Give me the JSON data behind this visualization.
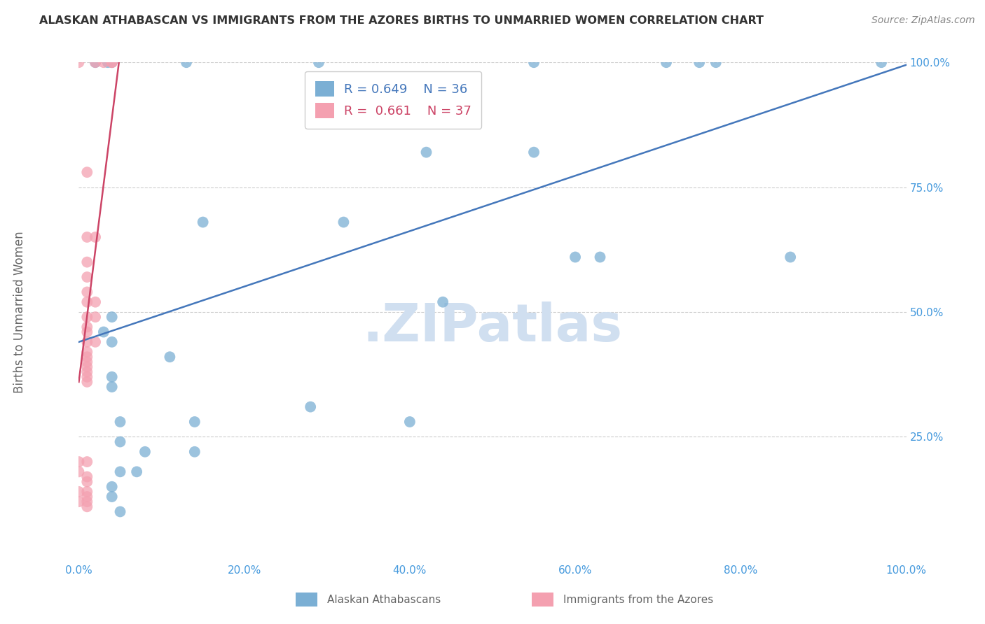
{
  "title": "ALASKAN ATHABASCAN VS IMMIGRANTS FROM THE AZORES BIRTHS TO UNMARRIED WOMEN CORRELATION CHART",
  "source": "Source: ZipAtlas.com",
  "ylabel": "Births to Unmarried Women",
  "xlabel_ticks": [
    "0.0%",
    "20.0%",
    "40.0%",
    "60.0%",
    "80.0%",
    "100.0%"
  ],
  "ylim": [
    0,
    1.0
  ],
  "xlim": [
    0,
    1.0
  ],
  "legend_blue_r": "0.649",
  "legend_blue_n": "36",
  "legend_pink_r": "0.661",
  "legend_pink_n": "37",
  "legend_label_blue": "Alaskan Athabascans",
  "legend_label_pink": "Immigrants from the Azores",
  "watermark": ".ZIPatlas",
  "blue_scatter": [
    [
      0.02,
      1.0
    ],
    [
      0.035,
      1.0
    ],
    [
      0.04,
      1.0
    ],
    [
      0.13,
      1.0
    ],
    [
      0.29,
      1.0
    ],
    [
      0.55,
      1.0
    ],
    [
      0.71,
      1.0
    ],
    [
      0.75,
      1.0
    ],
    [
      0.77,
      1.0
    ],
    [
      0.97,
      1.0
    ],
    [
      0.42,
      0.82
    ],
    [
      0.55,
      0.82
    ],
    [
      0.15,
      0.68
    ],
    [
      0.32,
      0.68
    ],
    [
      0.6,
      0.61
    ],
    [
      0.63,
      0.61
    ],
    [
      0.86,
      0.61
    ],
    [
      0.44,
      0.52
    ],
    [
      0.04,
      0.49
    ],
    [
      0.03,
      0.46
    ],
    [
      0.04,
      0.44
    ],
    [
      0.11,
      0.41
    ],
    [
      0.04,
      0.37
    ],
    [
      0.04,
      0.35
    ],
    [
      0.28,
      0.31
    ],
    [
      0.05,
      0.28
    ],
    [
      0.14,
      0.28
    ],
    [
      0.4,
      0.28
    ],
    [
      0.05,
      0.24
    ],
    [
      0.08,
      0.22
    ],
    [
      0.14,
      0.22
    ],
    [
      0.05,
      0.18
    ],
    [
      0.07,
      0.18
    ],
    [
      0.04,
      0.15
    ],
    [
      0.04,
      0.13
    ],
    [
      0.05,
      0.1
    ]
  ],
  "pink_scatter": [
    [
      0.0,
      1.0
    ],
    [
      0.02,
      1.0
    ],
    [
      0.03,
      1.0
    ],
    [
      0.04,
      1.0
    ],
    [
      0.04,
      1.0
    ],
    [
      0.01,
      0.78
    ],
    [
      0.01,
      0.65
    ],
    [
      0.02,
      0.65
    ],
    [
      0.01,
      0.6
    ],
    [
      0.01,
      0.57
    ],
    [
      0.01,
      0.54
    ],
    [
      0.01,
      0.52
    ],
    [
      0.02,
      0.52
    ],
    [
      0.01,
      0.49
    ],
    [
      0.02,
      0.49
    ],
    [
      0.01,
      0.47
    ],
    [
      0.01,
      0.46
    ],
    [
      0.01,
      0.44
    ],
    [
      0.02,
      0.44
    ],
    [
      0.01,
      0.42
    ],
    [
      0.01,
      0.41
    ],
    [
      0.01,
      0.4
    ],
    [
      0.01,
      0.39
    ],
    [
      0.01,
      0.38
    ],
    [
      0.01,
      0.37
    ],
    [
      0.01,
      0.36
    ],
    [
      0.0,
      0.2
    ],
    [
      0.01,
      0.2
    ],
    [
      0.0,
      0.18
    ],
    [
      0.01,
      0.17
    ],
    [
      0.01,
      0.16
    ],
    [
      0.0,
      0.14
    ],
    [
      0.01,
      0.14
    ],
    [
      0.01,
      0.13
    ],
    [
      0.0,
      0.12
    ],
    [
      0.01,
      0.12
    ],
    [
      0.01,
      0.11
    ]
  ],
  "blue_line_x": [
    0.0,
    1.0
  ],
  "blue_line_y": [
    0.44,
    0.995
  ],
  "pink_line_x": [
    0.0,
    0.05
  ],
  "pink_line_y": [
    0.36,
    1.02
  ],
  "blue_color": "#7BAFD4",
  "pink_color": "#F4A0B0",
  "blue_line_color": "#4477BB",
  "pink_line_color": "#CC4466",
  "grid_color": "#CCCCCC",
  "background_color": "#FFFFFF",
  "title_color": "#333333",
  "axis_color": "#4499DD",
  "watermark_color": "#D0DFF0"
}
